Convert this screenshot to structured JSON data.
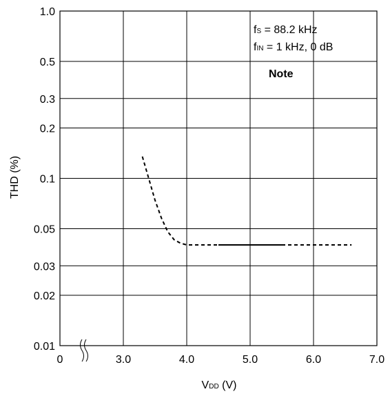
{
  "chart_data": {
    "type": "line",
    "xlabel": {
      "main": "V",
      "sub": "DD",
      "unit": " (V)"
    },
    "ylabel": "THD (%)",
    "x_ticks": [
      "0",
      "3.0",
      "4.0",
      "5.0",
      "6.0",
      "7.0"
    ],
    "y_ticks": [
      "1.0",
      "0.5",
      "0.3",
      "0.2",
      "0.1",
      "0.05",
      "0.03",
      "0.02",
      "0.01"
    ],
    "y_scale": "log",
    "xlim": [
      2.0,
      7.0
    ],
    "ylim": [
      0.01,
      1.0
    ],
    "grid": true,
    "axis_break": "x-axis between 0 and 3.0",
    "annotations": [
      {
        "main": "f",
        "sub": "S",
        "rest": " = 88.2 kHz"
      },
      {
        "main": "f",
        "sub": "IN",
        "rest": " = 1 kHz, 0 dB"
      }
    ],
    "note_label": "Note",
    "series": [
      {
        "style": "dashed",
        "x": [
          3.3,
          3.4,
          3.5,
          3.6,
          3.7,
          3.8,
          3.9,
          4.0,
          4.2,
          4.5
        ],
        "y": [
          0.135,
          0.1,
          0.074,
          0.058,
          0.048,
          0.043,
          0.041,
          0.04,
          0.04,
          0.04
        ]
      },
      {
        "style": "solid",
        "x": [
          4.5,
          5.5
        ],
        "y": [
          0.04,
          0.04
        ]
      },
      {
        "style": "dashed",
        "x": [
          5.5,
          6.6
        ],
        "y": [
          0.04,
          0.04
        ]
      }
    ]
  }
}
